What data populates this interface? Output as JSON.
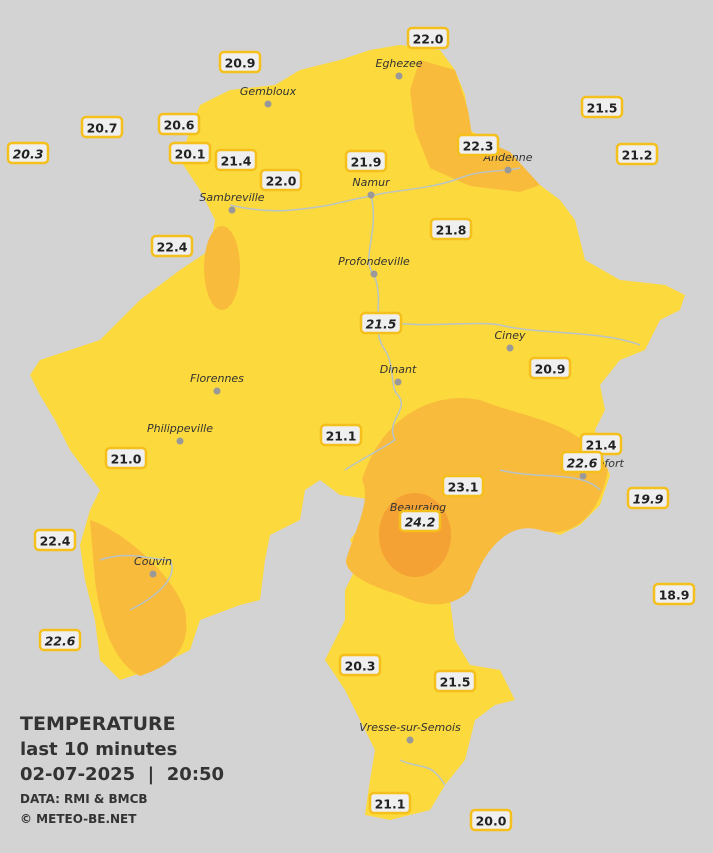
{
  "stations": [
    "22.0",
    "20.9",
    "21.5",
    "20.7",
    "20.6",
    "20.3",
    "20.1",
    "21.4",
    "22.3",
    "21.2",
    "22.0",
    "21.9",
    "21.8",
    "22.4",
    "21.5",
    "20.9",
    "21.1",
    "21.0",
    "21.4",
    "22.6",
    "23.1",
    "19.9",
    "24.2",
    "22.4",
    "18.9",
    "22.6",
    "20.3",
    "21.5",
    "21.1",
    "20.0"
  ],
  "cities": [
    "Eghezee",
    "Gembloux",
    "Andenne",
    "Namur",
    "Sambreville",
    "Profondeville",
    "Ciney",
    "Dinant",
    "Florennes",
    "Philippeville",
    "Rochefort",
    "Beauraing",
    "Couvin",
    "Vresse-sur-Semois"
  ],
  "legend": {
    "title": "TEMPERATURE",
    "period": "last 10 minutes",
    "datetime": "02-07-2025  |  20:50",
    "source": "DATA: RMI & BMCB",
    "copyright": "© METEO-BE.NET"
  }
}
